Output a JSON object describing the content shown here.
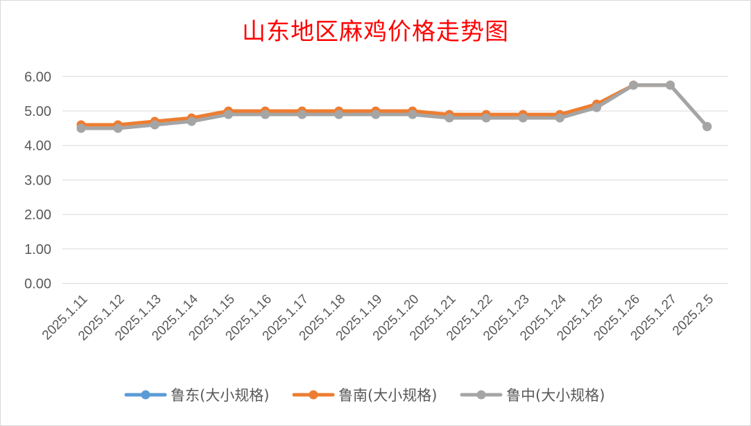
{
  "chart_data": {
    "type": "line",
    "title": "山东地区麻鸡价格走势图",
    "xlabel": "",
    "ylabel": "",
    "ylim": [
      0,
      6
    ],
    "yticks": [
      "0.00",
      "1.00",
      "2.00",
      "3.00",
      "4.00",
      "5.00",
      "6.00"
    ],
    "grid": true,
    "legend": "bottom",
    "categories": [
      "2025.1.11",
      "2025.1.12",
      "2025.1.13",
      "2025.1.14",
      "2025.1.15",
      "2025.1.16",
      "2025.1.17",
      "2025.1.18",
      "2025.1.19",
      "2025.1.20",
      "2025.1.21",
      "2025.1.22",
      "2025.1.23",
      "2025.1.24",
      "2025.1.25",
      "2025.1.26",
      "2025.1.27",
      "2025.2.5"
    ],
    "series": [
      {
        "name": "鲁东(大小规格)",
        "color": "#5b9bd5",
        "values": [
          4.5,
          4.5,
          4.6,
          4.7,
          4.9,
          4.9,
          4.9,
          4.9,
          4.9,
          4.9,
          4.8,
          4.8,
          4.8,
          4.8,
          5.1,
          5.75,
          5.75,
          4.55
        ]
      },
      {
        "name": "鲁南(大小规格)",
        "color": "#ed7d31",
        "values": [
          4.6,
          4.6,
          4.7,
          4.8,
          5.0,
          5.0,
          5.0,
          5.0,
          5.0,
          5.0,
          4.9,
          4.9,
          4.9,
          4.9,
          5.2,
          5.75,
          5.75,
          4.55
        ]
      },
      {
        "name": "鲁中(大小规格)",
        "color": "#a5a5a5",
        "values": [
          4.5,
          4.5,
          4.6,
          4.7,
          4.9,
          4.9,
          4.9,
          4.9,
          4.9,
          4.9,
          4.8,
          4.8,
          4.8,
          4.8,
          5.1,
          5.75,
          5.75,
          4.55
        ]
      }
    ]
  }
}
